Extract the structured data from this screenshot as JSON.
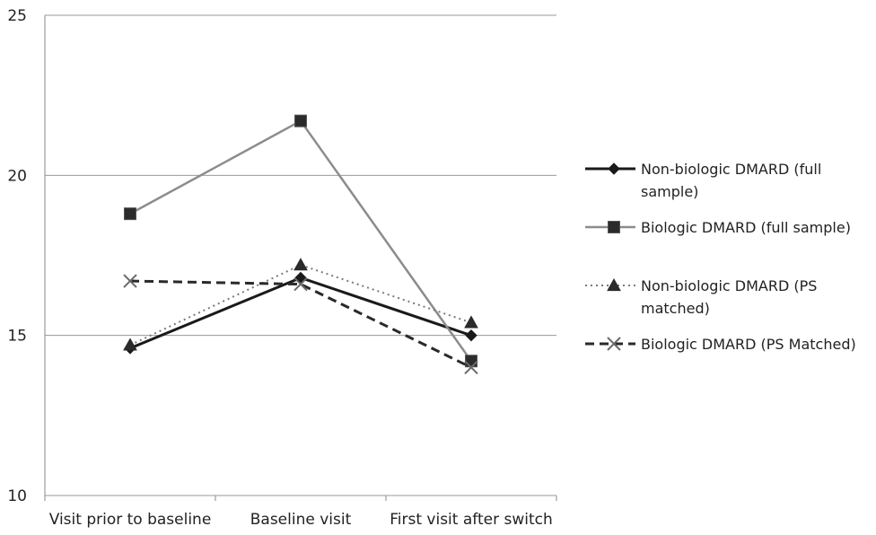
{
  "chart_data": {
    "type": "line",
    "categories": [
      "Visit prior to baseline",
      "Baseline visit",
      "First visit after switch"
    ],
    "ylim": [
      10,
      25
    ],
    "yticks": [
      "10",
      "15",
      "20",
      "25"
    ],
    "grid": true,
    "legend_position": "right",
    "series": [
      {
        "name_lines": [
          "Non-biologic DMARD (full",
          "sample)"
        ],
        "values": [
          14.6,
          16.8,
          15.0
        ],
        "color": "#1a1a1a",
        "dash": "solid",
        "width": 3,
        "marker": "diamond"
      },
      {
        "name_lines": [
          "Biologic DMARD (full sample)"
        ],
        "values": [
          18.8,
          21.7,
          14.2
        ],
        "color": "#8c8c8c",
        "dash": "solid",
        "width": 2.5,
        "marker": "square"
      },
      {
        "name_lines": [
          "Non-biologic DMARD (PS",
          "matched)"
        ],
        "values": [
          14.7,
          17.2,
          15.4
        ],
        "color": "#7a7a7a",
        "dash": "dotted",
        "width": 2,
        "marker": "triangle"
      },
      {
        "name_lines": [
          "Biologic DMARD (PS Matched)"
        ],
        "values": [
          16.7,
          16.6,
          14.0
        ],
        "color": "#2a2a2a",
        "dash": "dashed",
        "width": 3,
        "marker": "x"
      }
    ]
  }
}
